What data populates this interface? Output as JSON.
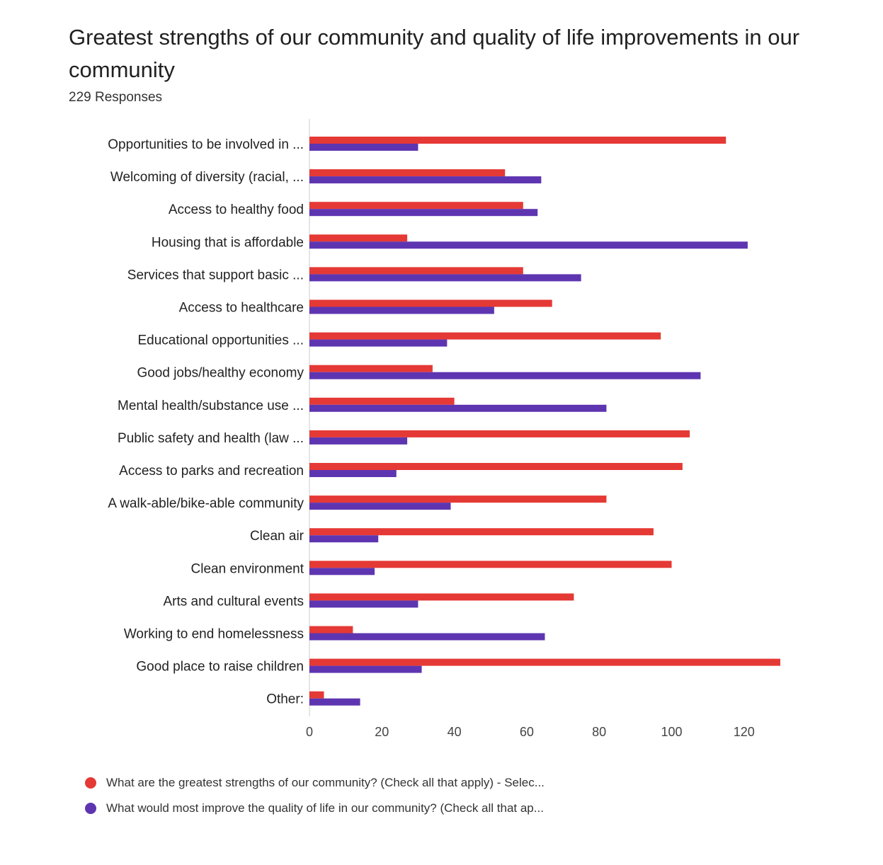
{
  "chart_data": {
    "type": "bar",
    "orientation": "horizontal",
    "title": "Greatest strengths of our community and quality of life improvements in our community",
    "subtitle": "229 Responses",
    "categories": [
      "Opportunities to be involved in ...",
      "Welcoming of diversity (racial, ...",
      "Access to healthy food",
      "Housing that is affordable",
      "Services that support basic ...",
      "Access to healthcare",
      "Educational opportunities ...",
      "Good jobs/healthy economy",
      "Mental health/substance use ...",
      "Public safety and health (law ...",
      "Access to parks and recreation",
      "A walk-able/bike-able community",
      "Clean air",
      "Clean environment",
      "Arts and cultural events",
      "Working to end homelessness",
      "Good place to raise children",
      "Other:"
    ],
    "series": [
      {
        "name": "What are the greatest strengths of our community? (Check all that apply) - Selec...",
        "color": "#e53935",
        "values": [
          115,
          54,
          59,
          27,
          59,
          67,
          97,
          34,
          40,
          105,
          103,
          82,
          95,
          100,
          73,
          12,
          130,
          4
        ]
      },
      {
        "name": "What would most improve the quality of life in our community? (Check all that ap...",
        "color": "#5e35b1",
        "values": [
          30,
          64,
          63,
          121,
          75,
          51,
          38,
          108,
          82,
          27,
          24,
          39,
          19,
          18,
          30,
          65,
          31,
          14
        ]
      }
    ],
    "xlim": [
      0,
      130
    ],
    "xticks": [
      0,
      20,
      40,
      60,
      80,
      100,
      120
    ],
    "xlabel": "",
    "ylabel": "",
    "legend_position": "bottom-left"
  }
}
